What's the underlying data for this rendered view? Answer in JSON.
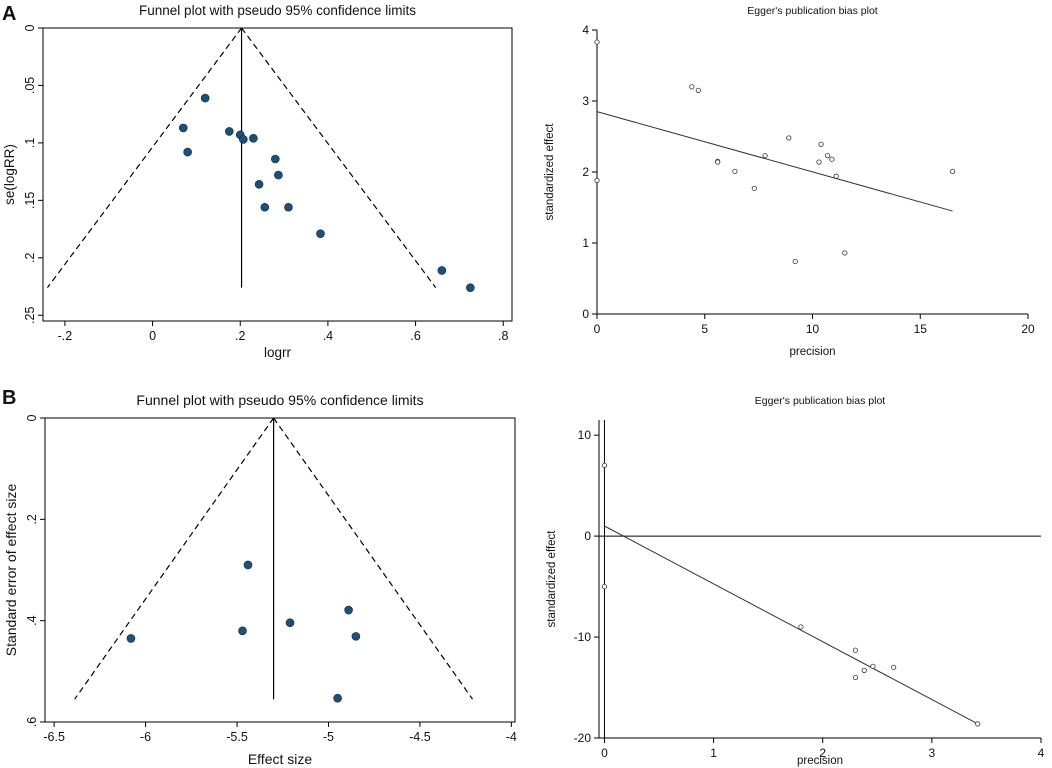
{
  "panels": [
    {
      "letter": "A"
    },
    {
      "letter": "B"
    }
  ],
  "colors": {
    "marker_fill": "#1f4e79",
    "line": "#000000",
    "egger_line": "#333333",
    "background": "#ffffff"
  },
  "chart_data": [
    {
      "id": "A-funnel",
      "type": "scatter",
      "title": "Funnel plot with pseudo 95% confidence limits",
      "xlabel": "logrr",
      "ylabel": "se(logRR)",
      "xlim": [
        -0.25,
        0.82
      ],
      "ylim": [
        0,
        0.255
      ],
      "y_inverted": true,
      "xticks": [
        -0.2,
        0,
        0.2,
        0.4,
        0.6,
        0.8
      ],
      "xtick_labels": [
        "-.2",
        "0",
        ".2",
        ".4",
        ".6",
        ".8"
      ],
      "yticks": [
        0,
        0.05,
        0.1,
        0.15,
        0.2,
        0.25
      ],
      "ytick_labels": [
        "0",
        ".05",
        ".1",
        ".15",
        ".2",
        ".25"
      ],
      "pooled_estimate": 0.203,
      "funnel_max_se": 0.226,
      "marker": "filled",
      "points": [
        {
          "x": 0.12,
          "y": 0.061
        },
        {
          "x": 0.07,
          "y": 0.087
        },
        {
          "x": 0.08,
          "y": 0.108
        },
        {
          "x": 0.175,
          "y": 0.09
        },
        {
          "x": 0.2,
          "y": 0.093
        },
        {
          "x": 0.207,
          "y": 0.097
        },
        {
          "x": 0.23,
          "y": 0.096
        },
        {
          "x": 0.28,
          "y": 0.114
        },
        {
          "x": 0.287,
          "y": 0.128
        },
        {
          "x": 0.243,
          "y": 0.136
        },
        {
          "x": 0.256,
          "y": 0.156
        },
        {
          "x": 0.31,
          "y": 0.156
        },
        {
          "x": 0.383,
          "y": 0.179
        },
        {
          "x": 0.66,
          "y": 0.211
        },
        {
          "x": 0.725,
          "y": 0.226
        }
      ]
    },
    {
      "id": "A-egger",
      "type": "scatter",
      "title": "Egger's publication bias plot",
      "xlabel": "precision",
      "ylabel": "standardized effect",
      "xlim": [
        0,
        20
      ],
      "ylim": [
        0,
        4
      ],
      "xticks": [
        0,
        5,
        10,
        15,
        20
      ],
      "xtick_labels": [
        "0",
        "5",
        "10",
        "15",
        "20"
      ],
      "yticks": [
        0,
        1,
        2,
        3,
        4
      ],
      "ytick_labels": [
        "0",
        "1",
        "2",
        "3",
        "4"
      ],
      "marker": "hollow",
      "points": [
        {
          "x": 0,
          "y": 3.83
        },
        {
          "x": 0,
          "y": 1.88
        },
        {
          "x": 4.4,
          "y": 3.2
        },
        {
          "x": 4.7,
          "y": 3.15
        },
        {
          "x": 5.6,
          "y": 2.15
        },
        {
          "x": 5.6,
          "y": 2.14
        },
        {
          "x": 6.4,
          "y": 2.01
        },
        {
          "x": 7.3,
          "y": 1.77
        },
        {
          "x": 7.8,
          "y": 2.23
        },
        {
          "x": 8.9,
          "y": 2.48
        },
        {
          "x": 9.2,
          "y": 0.74
        },
        {
          "x": 10.3,
          "y": 2.14
        },
        {
          "x": 10.4,
          "y": 2.39
        },
        {
          "x": 10.7,
          "y": 2.23
        },
        {
          "x": 10.9,
          "y": 2.18
        },
        {
          "x": 11.1,
          "y": 1.94
        },
        {
          "x": 11.5,
          "y": 0.86
        },
        {
          "x": 16.5,
          "y": 2.01
        }
      ],
      "fit_line": {
        "x": [
          0,
          16.5
        ],
        "y": [
          2.85,
          1.45
        ]
      },
      "vertical_line_x": 0,
      "vertical_line_y": [
        0,
        4
      ]
    },
    {
      "id": "B-funnel",
      "type": "scatter",
      "title": "Funnel plot with pseudo 95% confidence limits",
      "xlabel": "Effect size",
      "ylabel": "Standard error of effect size",
      "xlim": [
        -6.55,
        -3.98
      ],
      "ylim": [
        0,
        0.6
      ],
      "y_inverted": true,
      "xticks": [
        -6.5,
        -6,
        -5.5,
        -5,
        -4.5,
        -4
      ],
      "xtick_labels": [
        "-6.5",
        "-6",
        "-5.5",
        "-5",
        "-4.5",
        "-4"
      ],
      "yticks": [
        0,
        0.2,
        0.4,
        0.6
      ],
      "ytick_labels": [
        "0",
        ".2",
        ".4",
        ".6"
      ],
      "pooled_estimate": -5.3,
      "funnel_max_se": 0.555,
      "marker": "filled",
      "points": [
        {
          "x": -5.44,
          "y": 0.29
        },
        {
          "x": -6.08,
          "y": 0.435
        },
        {
          "x": -5.47,
          "y": 0.42
        },
        {
          "x": -5.21,
          "y": 0.404
        },
        {
          "x": -4.89,
          "y": 0.379
        },
        {
          "x": -4.85,
          "y": 0.431
        },
        {
          "x": -4.95,
          "y": 0.553
        }
      ]
    },
    {
      "id": "B-egger",
      "type": "scatter",
      "title": "Egger's publication bias plot",
      "xlabel": "precision",
      "ylabel": "standardized effect",
      "xlim": [
        -0.05,
        4
      ],
      "ylim": [
        -20,
        11.5
      ],
      "xticks": [
        0,
        1,
        2,
        3,
        4
      ],
      "xtick_labels": [
        "0",
        "1",
        "2",
        "3",
        "4"
      ],
      "yticks": [
        -20,
        -10,
        0,
        10
      ],
      "ytick_labels": [
        "-20",
        "-10",
        "0",
        "10"
      ],
      "marker": "hollow",
      "points": [
        {
          "x": 0,
          "y": 7
        },
        {
          "x": 0,
          "y": -5
        },
        {
          "x": 1.8,
          "y": -9
        },
        {
          "x": 2.3,
          "y": -11.3
        },
        {
          "x": 2.3,
          "y": -14
        },
        {
          "x": 2.38,
          "y": -13.3
        },
        {
          "x": 2.46,
          "y": -12.9
        },
        {
          "x": 2.65,
          "y": -13
        },
        {
          "x": 3.42,
          "y": -18.6
        }
      ],
      "fit_line": {
        "x": [
          0,
          3.42
        ],
        "y": [
          1,
          -18.6
        ]
      },
      "zero_line_y": 0,
      "vertical_line_x": 0,
      "vertical_line_y": [
        -20,
        11.5
      ]
    }
  ]
}
